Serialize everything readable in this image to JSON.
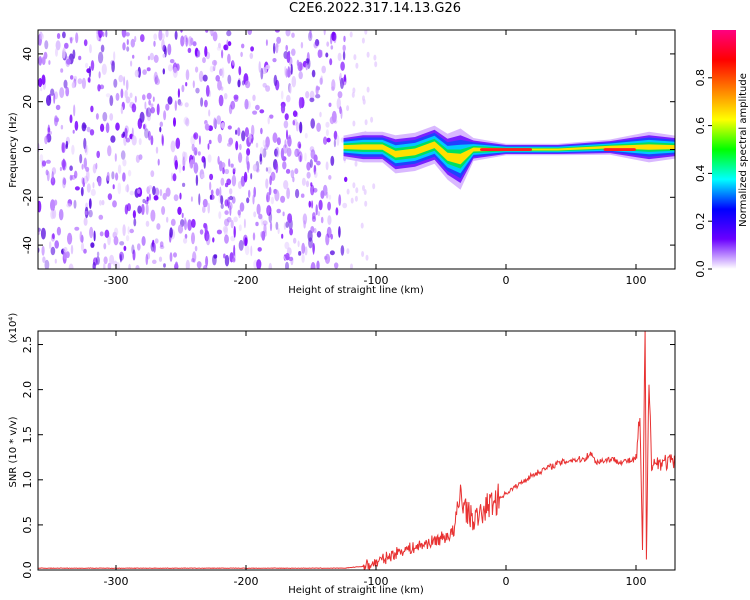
{
  "title": "C2E6.2022.317.14.13.G26",
  "chart_data": [
    {
      "type": "heatmap",
      "xlabel": "Height of straight line (km)",
      "ylabel": "Frequency (Hz)",
      "xlim": [
        -360,
        130
      ],
      "ylim": [
        -50,
        50
      ],
      "xticks": [
        -300,
        -200,
        -100,
        0,
        100
      ],
      "yticks": [
        -40,
        -20,
        0,
        20,
        40
      ],
      "noise_region_x": [
        -360,
        -123
      ],
      "signal_band": [
        {
          "x": -125,
          "center": 1,
          "halfwidth": 3
        },
        {
          "x": -110,
          "center": 1,
          "halfwidth": 4
        },
        {
          "x": -95,
          "center": 1,
          "halfwidth": 4
        },
        {
          "x": -85,
          "center": -2,
          "halfwidth": 5
        },
        {
          "x": -70,
          "center": -1,
          "halfwidth": 5
        },
        {
          "x": -55,
          "center": 2,
          "halfwidth": 5
        },
        {
          "x": -45,
          "center": -3,
          "halfwidth": 6
        },
        {
          "x": -35,
          "center": -4,
          "halfwidth": 8
        },
        {
          "x": -25,
          "center": 0,
          "halfwidth": 3
        },
        {
          "x": 0,
          "center": 0,
          "halfwidth": 1.5
        },
        {
          "x": 40,
          "center": 0,
          "halfwidth": 1.5
        },
        {
          "x": 80,
          "center": 1,
          "halfwidth": 2
        },
        {
          "x": 110,
          "center": 1,
          "halfwidth": 4
        },
        {
          "x": 130,
          "center": 1,
          "halfwidth": 3
        }
      ],
      "colorbar": {
        "label": "Normalized spectral amplitude",
        "range": [
          0.0,
          1.0
        ],
        "ticks": [
          "0.0",
          "0.2",
          "0.4",
          "0.6",
          "0.8"
        ],
        "colors": [
          "#ffffff",
          "#6a00ff",
          "#0000ff",
          "#00ffff",
          "#00ff00",
          "#ffff00",
          "#ff8000",
          "#ff0000",
          "#ff0080"
        ]
      }
    },
    {
      "type": "line",
      "xlabel": "Height of straight line (km)",
      "ylabel": "SNR (10 * v/v)",
      "y_multiplier": "(x10⁴)",
      "xlim": [
        -360,
        130
      ],
      "ylim": [
        0,
        2.65
      ],
      "xticks": [
        -300,
        -200,
        -100,
        0,
        100
      ],
      "yticks": [
        "0.0",
        "0.5",
        "1.0",
        "1.5",
        "2.0",
        "2.5"
      ],
      "series": [
        {
          "color": "#e83232",
          "x": [
            -360,
            -200,
            -125,
            -110,
            -100,
            -90,
            -80,
            -70,
            -60,
            -50,
            -40,
            -35,
            -30,
            -25,
            -20,
            -15,
            -10,
            0,
            10,
            20,
            30,
            40,
            50,
            60,
            65,
            68,
            70,
            80,
            90,
            100,
            103,
            105,
            107,
            108,
            110,
            112,
            115,
            120,
            130
          ],
          "y": [
            0.02,
            0.02,
            0.02,
            0.04,
            0.08,
            0.15,
            0.22,
            0.25,
            0.3,
            0.35,
            0.42,
            0.85,
            0.65,
            0.55,
            0.6,
            0.7,
            0.75,
            0.85,
            0.95,
            1.05,
            1.12,
            1.18,
            1.22,
            1.23,
            1.3,
            1.22,
            1.2,
            1.23,
            1.2,
            1.22,
            1.7,
            0.2,
            2.65,
            0.1,
            2.2,
            1.2,
            1.18,
            1.2,
            1.19
          ]
        }
      ]
    }
  ]
}
